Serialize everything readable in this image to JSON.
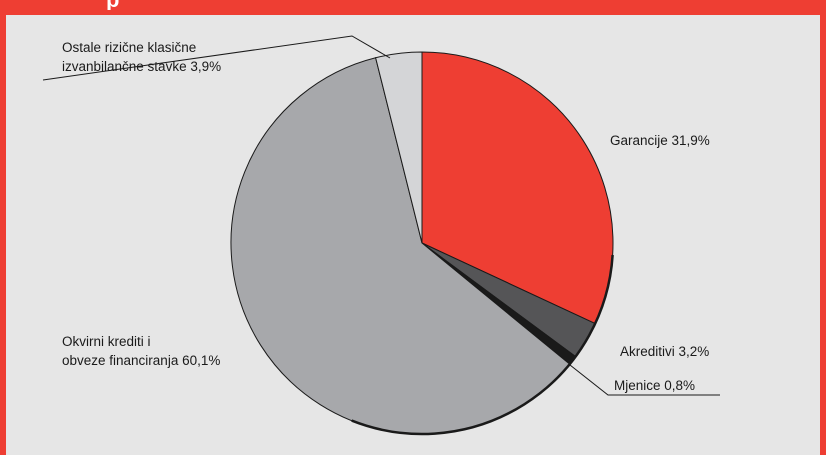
{
  "header": {
    "title_fragment": "p",
    "accent_color": "#ee3e33"
  },
  "chart_data": {
    "type": "pie",
    "slices": [
      {
        "label": "Garancije",
        "value_text": "31,9%",
        "value": 31.9,
        "color": "#ee3e33"
      },
      {
        "label": "Akreditivi",
        "value_text": "3,2%",
        "value": 3.2,
        "color": "#555557"
      },
      {
        "label": "Mjenice",
        "value_text": "0,8%",
        "value": 0.8,
        "color": "#1a1a1a"
      },
      {
        "label": "Okvirni krediti i obveze financiranja",
        "value_text": "60,1%",
        "value": 60.1,
        "color": "#a7a8ab"
      },
      {
        "label": "Ostale rizične klasične izvanbilančne stavke",
        "value_text": "3,9%",
        "value": 3.9,
        "color": "#d4d5d7"
      }
    ],
    "labels": {
      "garancije": "Garancije 31,9%",
      "akreditivi": "Akreditivi 3,2%",
      "mjenice": "Mjenice 0,8%",
      "okvirni_line1": "Okvirni krediti i",
      "okvirni_line2": "obveze financiranja 60,1%",
      "ostale_line1": "Ostale rizične klasične",
      "ostale_line2": "izvanbilančne stavke 3,9%"
    }
  }
}
